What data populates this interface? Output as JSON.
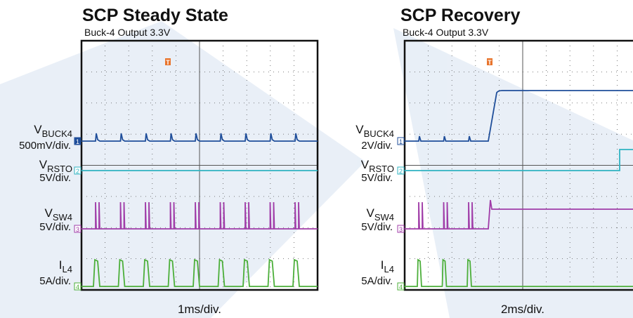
{
  "panels": [
    {
      "title": "SCP Steady State",
      "subtitle": "Buck-4 Output 3.3V",
      "timebase": "1ms/div.",
      "trigger": "T",
      "channels": [
        {
          "name": "V",
          "subscript": "BUCK4",
          "scale": "500mV/div.",
          "marker": "1"
        },
        {
          "name": "V",
          "subscript": "RSTO",
          "scale": "5V/div.",
          "marker": "2"
        },
        {
          "name": "V",
          "subscript": "SW4",
          "scale": "5V/div.",
          "marker": "3"
        },
        {
          "name": "I",
          "subscript": "L4",
          "scale": "5A/div.",
          "marker": "4"
        }
      ]
    },
    {
      "title": "SCP Recovery",
      "subtitle": "Buck-4 Output 3.3V",
      "timebase": "2ms/div.",
      "trigger": "T",
      "channels": [
        {
          "name": "V",
          "subscript": "BUCK4",
          "scale": "2V/div.",
          "marker": "1"
        },
        {
          "name": "V",
          "subscript": "RSTO",
          "scale": "5V/div.",
          "marker": "2"
        },
        {
          "name": "V",
          "subscript": "SW4",
          "scale": "5V/div.",
          "marker": "3"
        },
        {
          "name": "I",
          "subscript": "L4",
          "scale": "5A/div.",
          "marker": "4"
        }
      ]
    }
  ]
}
